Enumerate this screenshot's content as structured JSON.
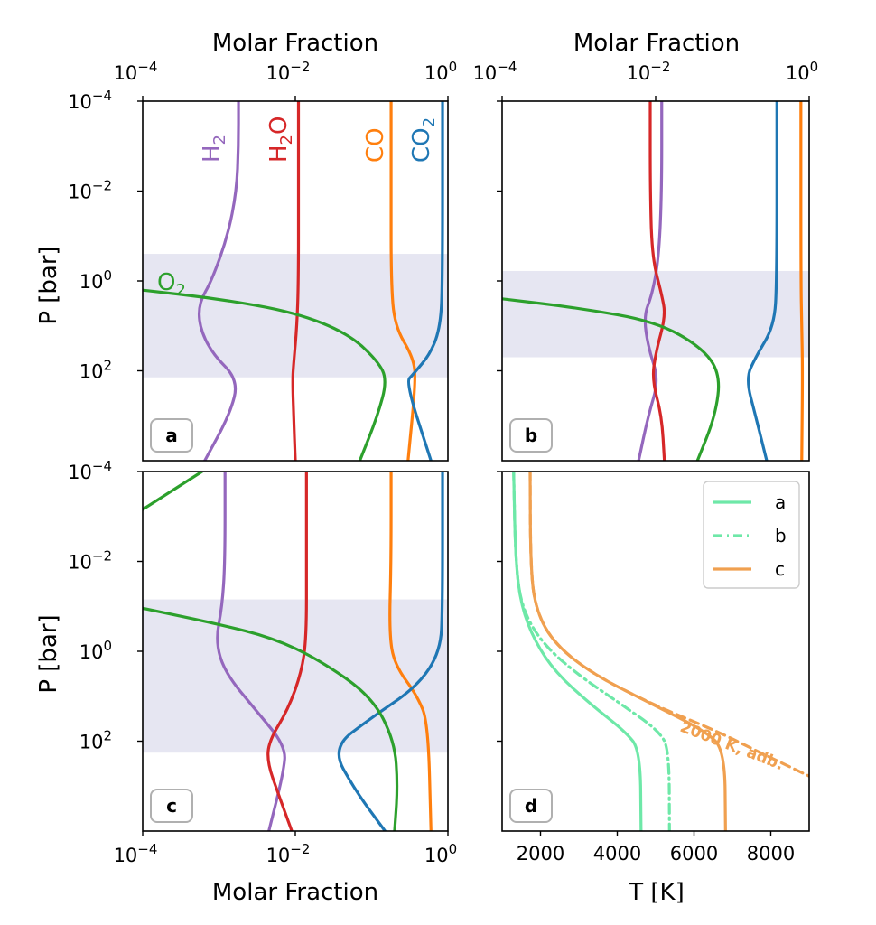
{
  "colors": {
    "H2": "#9467bd",
    "H2O": "#d62728",
    "CO": "#ff7f0e",
    "CO2": "#1f77b4",
    "O2": "#2ca02c",
    "band": "#e6e6f2",
    "temp_a": "#6ee8a8",
    "temp_b": "#6ee8a8",
    "temp_c": "#f0a050",
    "temp_adb": "#f0a050",
    "tag_border": "#b0b0b0"
  },
  "axes_text": {
    "xlabel_top_left": "Molar Fraction",
    "xlabel_top_right": "Molar Fraction",
    "xlabel_bottom_left": "Molar Fraction",
    "xlabel_bottom_right": "T [K]",
    "ylabel_top": "P [bar]",
    "ylabel_bottom": "P [bar]",
    "xtick_mantissa": "10",
    "xtick_exponents": [
      "−4",
      "−2",
      "0"
    ],
    "ytick_mantissa": "10",
    "ytick_exponents": [
      "−4",
      "−2",
      "0",
      "2"
    ],
    "temp_ticks": [
      "2000",
      "4000",
      "6000",
      "8000"
    ]
  },
  "chart_data": [
    {
      "panel": "a",
      "type": "line",
      "xlabel": "Molar Fraction",
      "ylabel": "P [bar]",
      "x_scale": "log",
      "y_scale": "log",
      "xlim": [
        0.0001,
        1
      ],
      "ylim": [
        10000,
        0.0001
      ],
      "shaded_band_P": [
        0.25,
        140
      ],
      "species_labels": {
        "H2": "H",
        "H2_sub": "2",
        "H2O": "H",
        "H2O_sub": "2",
        "H2O_tail": "O",
        "CO": "CO",
        "CO2": "CO",
        "CO2_sub": "2",
        "O2": "O",
        "O2_sub": "2"
      },
      "series": [
        {
          "name": "H2",
          "points": [
            [
              0.0018,
              0.0001
            ],
            [
              0.0018,
              0.001
            ],
            [
              0.0017,
              0.01
            ],
            [
              0.0013,
              0.1
            ],
            [
              0.0008,
              1
            ],
            [
              0.00055,
              3
            ],
            [
              0.00055,
              10
            ],
            [
              0.0008,
              40
            ],
            [
              0.0018,
              160
            ],
            [
              0.0014,
              900
            ],
            [
              0.00065,
              10000
            ]
          ]
        },
        {
          "name": "H2O",
          "points": [
            [
              0.011,
              0.0001
            ],
            [
              0.011,
              0.01
            ],
            [
              0.011,
              1
            ],
            [
              0.0105,
              10
            ],
            [
              0.0095,
              70
            ],
            [
              0.0092,
              160
            ],
            [
              0.0095,
              1000
            ],
            [
              0.01,
              10000
            ]
          ]
        },
        {
          "name": "CO",
          "points": [
            [
              0.18,
              0.0001
            ],
            [
              0.18,
              0.01
            ],
            [
              0.18,
              1
            ],
            [
              0.2,
              10
            ],
            [
              0.35,
              50
            ],
            [
              0.38,
              160
            ],
            [
              0.3,
              10000
            ]
          ]
        },
        {
          "name": "CO2",
          "points": [
            [
              0.85,
              0.0001
            ],
            [
              0.85,
              1
            ],
            [
              0.8,
              10
            ],
            [
              0.6,
              40
            ],
            [
              0.35,
              120
            ],
            [
              0.28,
              180
            ],
            [
              0.6,
              10000
            ]
          ]
        },
        {
          "name": "O2",
          "points": [
            [
              0.0001,
              1.6
            ],
            [
              0.001,
              2.5
            ],
            [
              0.01,
              5
            ],
            [
              0.05,
              15
            ],
            [
              0.12,
              60
            ],
            [
              0.16,
              160
            ],
            [
              0.12,
              1000
            ],
            [
              0.07,
              10000
            ]
          ]
        }
      ]
    },
    {
      "panel": "b",
      "type": "line",
      "x_scale": "log",
      "y_scale": "log",
      "xlim": [
        0.0001,
        1
      ],
      "ylim": [
        10000,
        0.0001
      ],
      "shaded_band_P": [
        0.6,
        50
      ],
      "series": [
        {
          "name": "H2",
          "points": [
            [
              0.012,
              0.0001
            ],
            [
              0.012,
              0.01
            ],
            [
              0.011,
              0.3
            ],
            [
              0.009,
              2
            ],
            [
              0.007,
              6
            ],
            [
              0.008,
              30
            ],
            [
              0.011,
              160
            ],
            [
              0.008,
              1000
            ],
            [
              0.006,
              10000
            ]
          ]
        },
        {
          "name": "H2O",
          "points": [
            [
              0.0085,
              0.0001
            ],
            [
              0.0085,
              0.01
            ],
            [
              0.009,
              0.3
            ],
            [
              0.012,
              2
            ],
            [
              0.0135,
              6
            ],
            [
              0.01,
              40
            ],
            [
              0.009,
              160
            ],
            [
              0.012,
              1000
            ],
            [
              0.013,
              10000
            ]
          ]
        },
        {
          "name": "CO2",
          "points": [
            [
              0.38,
              0.0001
            ],
            [
              0.38,
              1
            ],
            [
              0.35,
              10
            ],
            [
              0.2,
              50
            ],
            [
              0.15,
              150
            ],
            [
              0.2,
              1000
            ],
            [
              0.28,
              10000
            ]
          ]
        },
        {
          "name": "CO",
          "points": [
            [
              0.78,
              0.0001
            ],
            [
              0.78,
              1
            ],
            [
              0.8,
              10
            ],
            [
              0.82,
              100
            ],
            [
              0.8,
              10000
            ]
          ]
        },
        {
          "name": "O2",
          "points": [
            [
              0.0001,
              2.5
            ],
            [
              0.001,
              4
            ],
            [
              0.01,
              8
            ],
            [
              0.04,
              30
            ],
            [
              0.07,
              120
            ],
            [
              0.06,
              1000
            ],
            [
              0.035,
              10000
            ]
          ]
        }
      ]
    },
    {
      "panel": "c",
      "type": "line",
      "xlabel": "Molar Fraction",
      "ylabel": "P [bar]",
      "x_scale": "log",
      "y_scale": "log",
      "xlim": [
        0.0001,
        1
      ],
      "ylim": [
        10000,
        0.0001
      ],
      "shaded_band_P": [
        0.07,
        180
      ],
      "series": [
        {
          "name": "H2",
          "points": [
            [
              0.0012,
              0.0001
            ],
            [
              0.0012,
              0.01
            ],
            [
              0.0011,
              0.1
            ],
            [
              0.0009,
              0.6
            ],
            [
              0.0012,
              3
            ],
            [
              0.003,
              20
            ],
            [
              0.0075,
              130
            ],
            [
              0.007,
              500
            ],
            [
              0.0045,
              10000
            ]
          ]
        },
        {
          "name": "H2O",
          "points": [
            [
              0.014,
              0.0001
            ],
            [
              0.014,
              0.01
            ],
            [
              0.014,
              0.5
            ],
            [
              0.012,
              3
            ],
            [
              0.008,
              20
            ],
            [
              0.0045,
              100
            ],
            [
              0.0043,
              300
            ],
            [
              0.006,
              1500
            ],
            [
              0.009,
              10000
            ]
          ]
        },
        {
          "name": "CO",
          "points": [
            [
              0.18,
              0.0001
            ],
            [
              0.18,
              0.01
            ],
            [
              0.17,
              0.4
            ],
            [
              0.2,
              2
            ],
            [
              0.4,
              10
            ],
            [
              0.55,
              40
            ],
            [
              0.6,
              10000
            ]
          ]
        },
        {
          "name": "CO2",
          "points": [
            [
              0.85,
              0.0001
            ],
            [
              0.85,
              0.1
            ],
            [
              0.8,
              1
            ],
            [
              0.4,
              6
            ],
            [
              0.1,
              30
            ],
            [
              0.03,
              140
            ],
            [
              0.06,
              1200
            ],
            [
              0.15,
              10000
            ]
          ]
        },
        {
          "name": "O2",
          "points": [
            [
              0.0001,
              0.0007
            ],
            [
              0.0006,
              0.0001
            ]
          ]
        },
        {
          "name": "O2",
          "points": [
            [
              0.0001,
              0.11
            ],
            [
              0.001,
              0.25
            ],
            [
              0.005,
              0.5
            ],
            [
              0.02,
              1.5
            ],
            [
              0.1,
              10
            ],
            [
              0.2,
              100
            ],
            [
              0.22,
              1000
            ],
            [
              0.2,
              10000
            ]
          ]
        }
      ]
    },
    {
      "panel": "d",
      "type": "line",
      "xlabel": "T [K]",
      "x_scale": "linear",
      "y_scale": "log",
      "xlim": [
        1000,
        9000
      ],
      "ylim": [
        10000,
        0.0001
      ],
      "legend_placement": "upper right",
      "annotation": "2000 K, adb.",
      "series": [
        {
          "name": "a",
          "style": "solid",
          "points": [
            [
              1300,
              0.0001
            ],
            [
              1350,
              0.01
            ],
            [
              1500,
              0.1
            ],
            [
              1850,
              0.6
            ],
            [
              2400,
              3
            ],
            [
              3300,
              15
            ],
            [
              4200,
              60
            ],
            [
              4600,
              160
            ],
            [
              4620,
              10000
            ]
          ]
        },
        {
          "name": "b",
          "style": "dashdot",
          "points": [
            [
              1300,
              0.0001
            ],
            [
              1350,
              0.01
            ],
            [
              1500,
              0.1
            ],
            [
              2000,
              0.6
            ],
            [
              2900,
              3
            ],
            [
              4100,
              15
            ],
            [
              5100,
              60
            ],
            [
              5350,
              160
            ],
            [
              5360,
              10000
            ]
          ]
        },
        {
          "name": "c",
          "style": "solid",
          "points": [
            [
              1730,
              0.0001
            ],
            [
              1740,
              0.01
            ],
            [
              1850,
              0.1
            ],
            [
              2300,
              0.6
            ],
            [
              3300,
              3
            ],
            [
              4900,
              15
            ],
            [
              6300,
              60
            ],
            [
              6800,
              160
            ],
            [
              6820,
              10000
            ]
          ]
        },
        {
          "name": "",
          "style": "dashed",
          "points": [
            [
              1730,
              0.0001
            ],
            [
              1740,
              0.01
            ],
            [
              1850,
              0.1
            ],
            [
              2300,
              0.6
            ],
            [
              3300,
              3
            ],
            [
              4900,
              15
            ],
            [
              6600,
              60
            ],
            [
              7600,
              160
            ],
            [
              9000,
              600
            ]
          ]
        }
      ]
    }
  ]
}
